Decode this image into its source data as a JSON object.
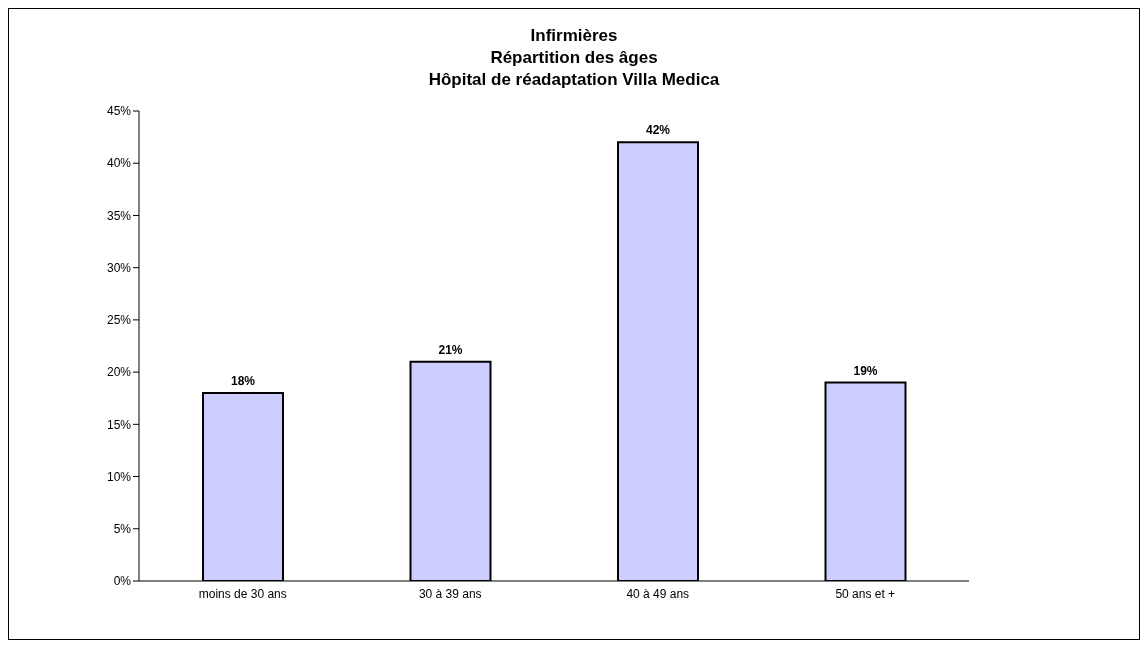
{
  "chart_data": {
    "type": "bar",
    "title": "Infirmières\nRépartition des âges\nHôpital de réadaptation Villa Medica",
    "categories": [
      "moins de 30 ans",
      "30 à 39 ans",
      "40 à 49 ans",
      "50 ans et +"
    ],
    "values": [
      18,
      21,
      42,
      19
    ],
    "color": "#ccccff",
    "value_labels": [
      "18%",
      "21%",
      "42%",
      "19%"
    ],
    "ylim": [
      0,
      45
    ],
    "yticks": [
      {
        "value": 0,
        "label": "0%"
      },
      {
        "value": 5,
        "label": "5%"
      },
      {
        "value": 10,
        "label": "10%"
      },
      {
        "value": 15,
        "label": "15%"
      },
      {
        "value": 20,
        "label": "20%"
      },
      {
        "value": 25,
        "label": "25%"
      },
      {
        "value": 30,
        "label": "30%"
      },
      {
        "value": 35,
        "label": "35%"
      },
      {
        "value": 40,
        "label": "40%"
      },
      {
        "value": 45,
        "label": "45%"
      }
    ],
    "grid": false,
    "legend": false
  }
}
